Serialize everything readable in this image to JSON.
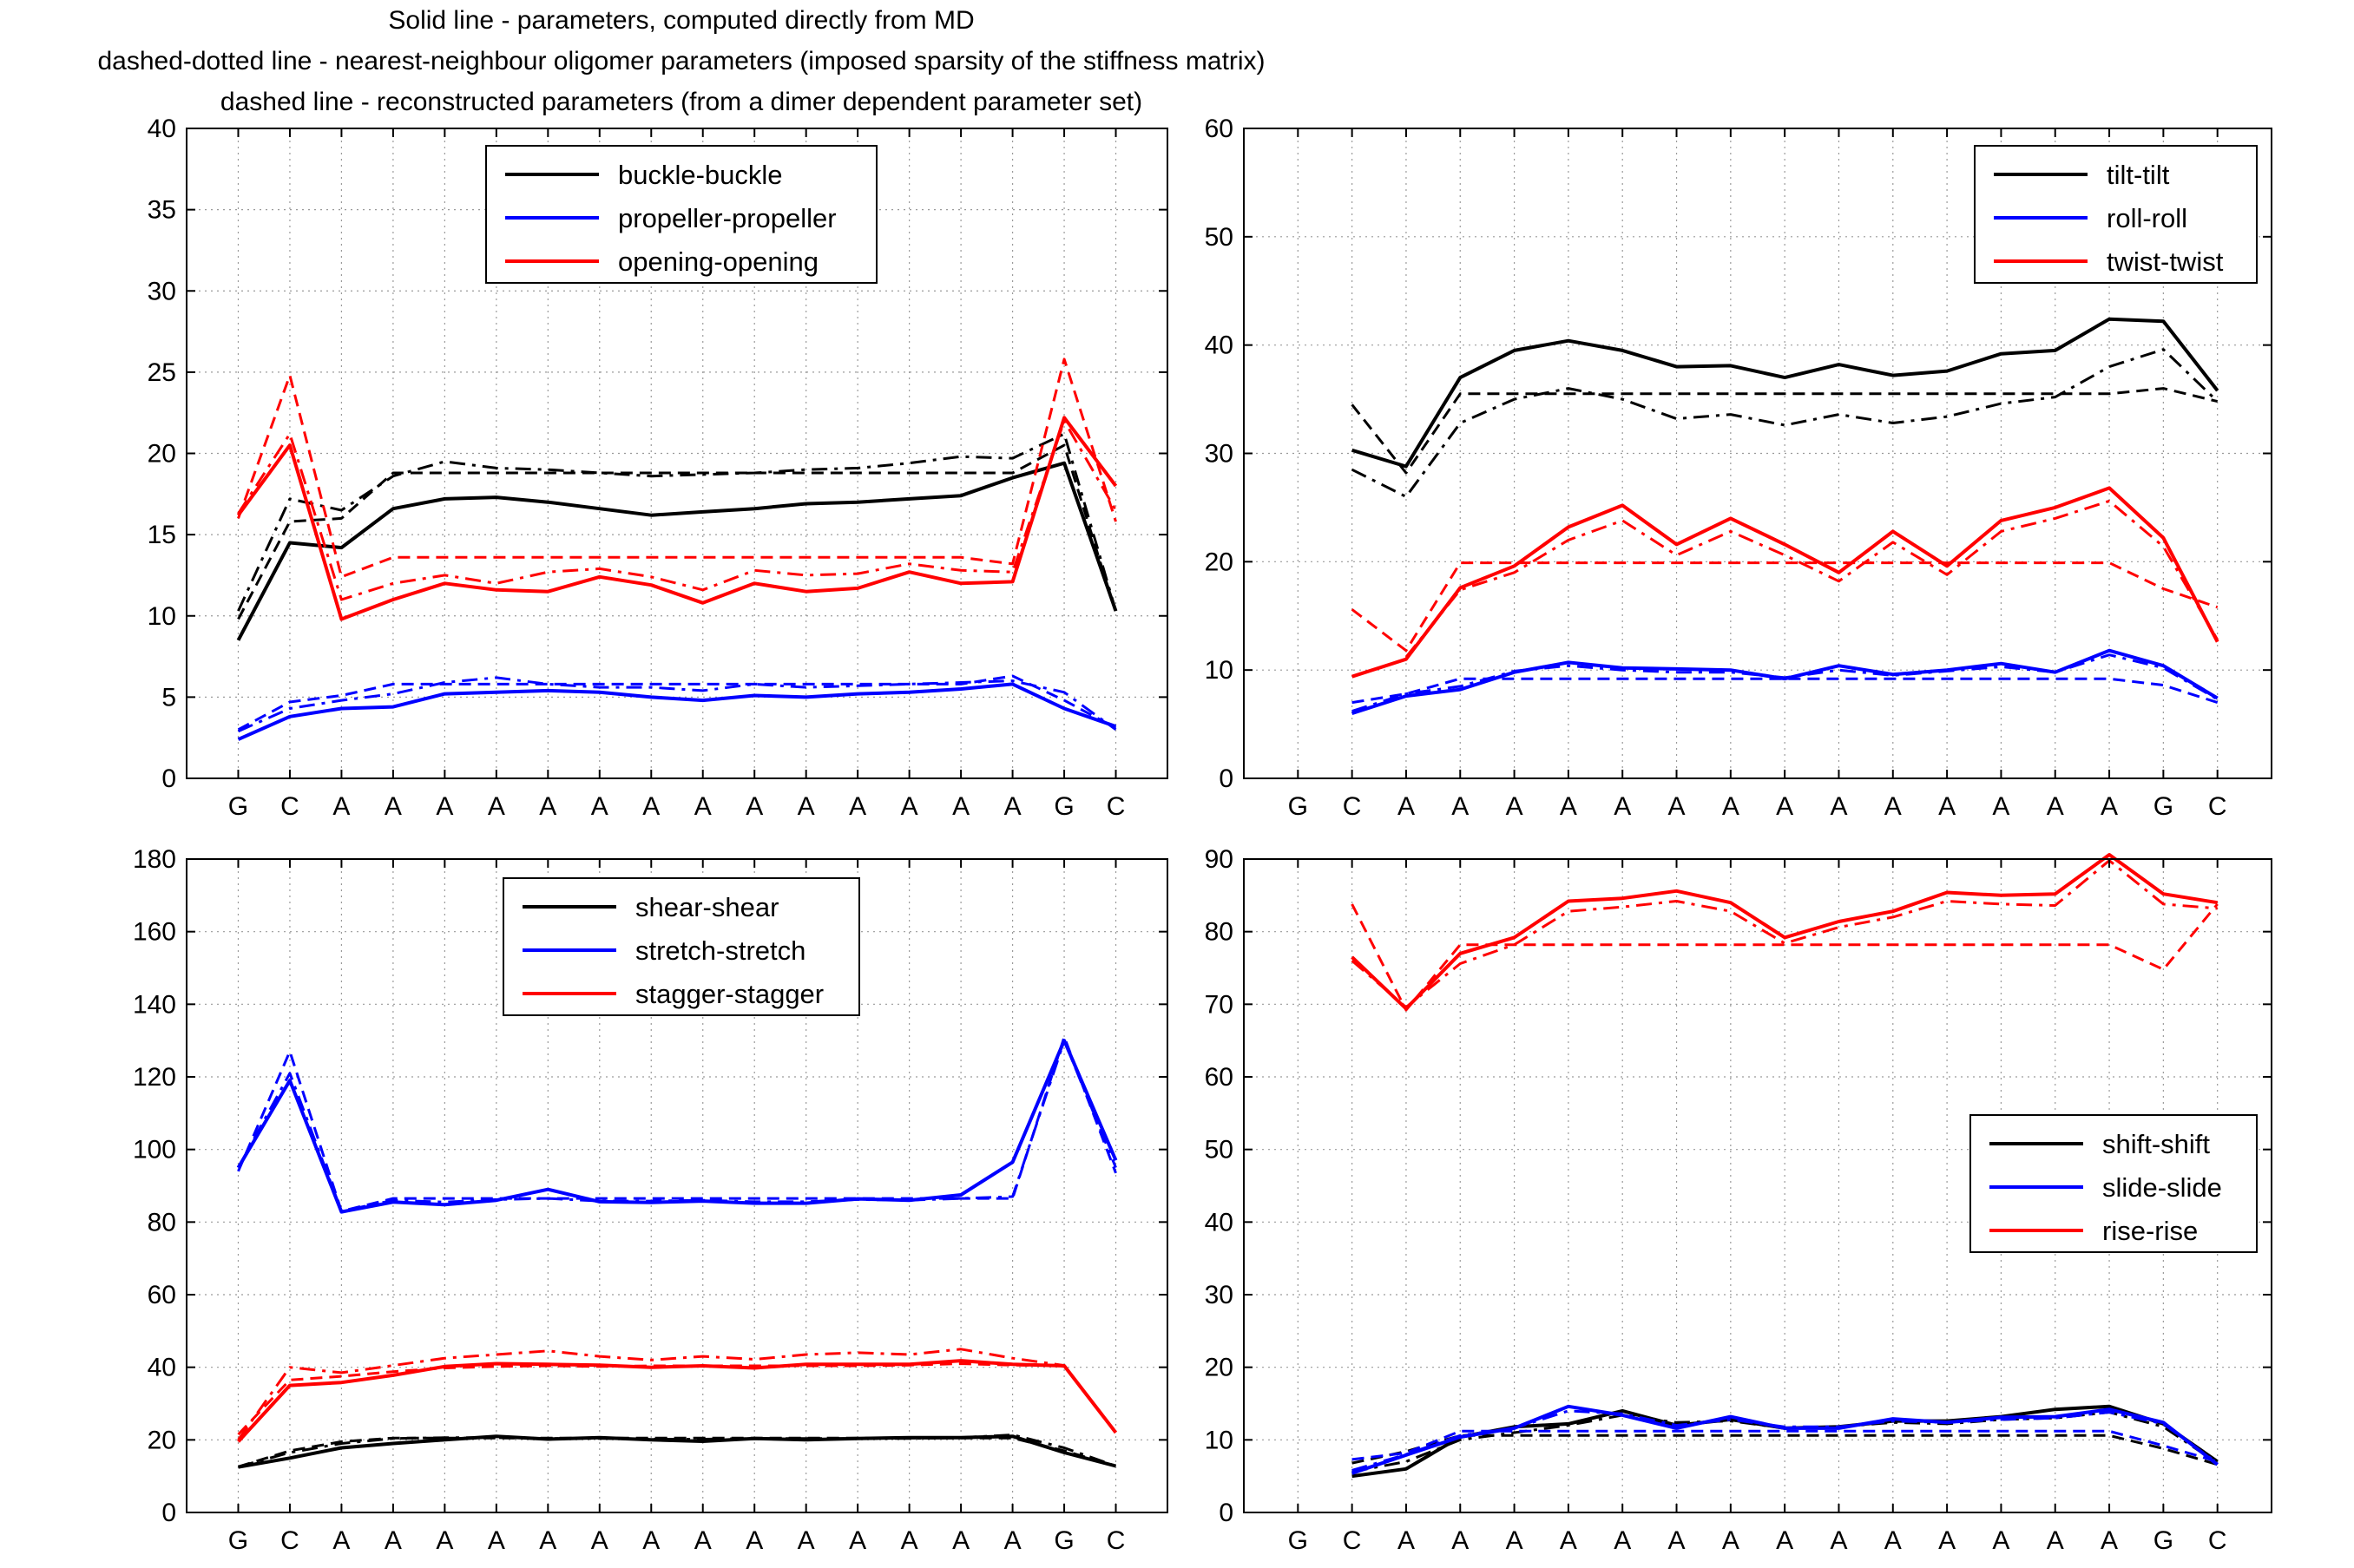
{
  "header": {
    "line1": "Solid line - parameters, computed directly from MD",
    "line2": "dashed-dotted line - nearest-neighbour oligomer parameters (imposed sparsity of the stiffness matrix)",
    "line3": "dashed line - reconstructed parameters (from a dimer dependent parameter set)"
  },
  "colors": {
    "black": "#000000",
    "blue": "#0000ff",
    "red": "#ff0000",
    "grid": "#9a9a9a"
  },
  "chart_data": [
    {
      "type": "line",
      "categories": [
        "G",
        "C",
        "A",
        "A",
        "A",
        "A",
        "A",
        "A",
        "A",
        "A",
        "A",
        "A",
        "A",
        "A",
        "A",
        "A",
        "G",
        "C"
      ],
      "ylim": [
        0,
        40
      ],
      "yticks": [
        0,
        5,
        10,
        15,
        20,
        25,
        30,
        35,
        40
      ],
      "legend_position": "top-center",
      "grid": true,
      "series": [
        {
          "name": "buckle-buckle",
          "color": "black",
          "style": "solid",
          "values": [
            8.5,
            14.5,
            14.2,
            16.6,
            17.2,
            17.3,
            17.0,
            16.6,
            16.2,
            16.4,
            16.6,
            16.9,
            17.0,
            17.2,
            17.4,
            18.5,
            19.4,
            10.3
          ]
        },
        {
          "name": "",
          "color": "black",
          "style": "dashdot",
          "values": [
            10.3,
            17.2,
            16.5,
            18.6,
            19.5,
            19.1,
            19.0,
            18.8,
            18.6,
            18.7,
            18.8,
            19.0,
            19.1,
            19.4,
            19.8,
            19.7,
            21.2,
            10.3
          ]
        },
        {
          "name": "",
          "color": "black",
          "style": "dashed",
          "values": [
            9.8,
            15.8,
            16.0,
            18.8,
            18.8,
            18.8,
            18.8,
            18.8,
            18.8,
            18.8,
            18.8,
            18.8,
            18.8,
            18.8,
            18.8,
            18.8,
            20.5,
            10.2
          ]
        },
        {
          "name": "propeller-propeller",
          "color": "blue",
          "style": "solid",
          "values": [
            2.4,
            3.8,
            4.3,
            4.4,
            5.2,
            5.3,
            5.4,
            5.3,
            5.0,
            4.8,
            5.1,
            5.0,
            5.2,
            5.3,
            5.5,
            5.8,
            4.3,
            3.2
          ]
        },
        {
          "name": "",
          "color": "blue",
          "style": "dashdot",
          "values": [
            2.9,
            4.3,
            4.8,
            5.2,
            5.9,
            6.2,
            5.8,
            5.6,
            5.6,
            5.4,
            5.8,
            5.6,
            5.7,
            5.8,
            5.9,
            6.0,
            5.3,
            3.0
          ]
        },
        {
          "name": "",
          "color": "blue",
          "style": "dashed",
          "values": [
            3.0,
            4.7,
            5.1,
            5.8,
            5.8,
            5.8,
            5.8,
            5.8,
            5.8,
            5.8,
            5.8,
            5.8,
            5.8,
            5.8,
            5.8,
            6.3,
            4.8,
            3.1
          ]
        },
        {
          "name": "opening-opening",
          "color": "red",
          "style": "solid",
          "values": [
            16.2,
            20.5,
            9.8,
            11.0,
            12.0,
            11.6,
            11.5,
            12.4,
            11.9,
            10.8,
            12.0,
            11.5,
            11.7,
            12.7,
            12.0,
            12.1,
            22.2,
            18.0
          ]
        },
        {
          "name": "",
          "color": "red",
          "style": "dashdot",
          "values": [
            16.3,
            21.2,
            11.0,
            12.0,
            12.5,
            12.0,
            12.7,
            12.9,
            12.4,
            11.6,
            12.8,
            12.5,
            12.6,
            13.2,
            12.8,
            12.7,
            22.0,
            16.5
          ]
        },
        {
          "name": "",
          "color": "red",
          "style": "dashed",
          "values": [
            16.0,
            24.8,
            12.4,
            13.6,
            13.6,
            13.6,
            13.6,
            13.6,
            13.6,
            13.6,
            13.6,
            13.6,
            13.6,
            13.6,
            13.6,
            13.2,
            25.8,
            15.8
          ]
        }
      ]
    },
    {
      "type": "line",
      "categories": [
        "G",
        "C",
        "A",
        "A",
        "A",
        "A",
        "A",
        "A",
        "A",
        "A",
        "A",
        "A",
        "A",
        "A",
        "A",
        "A",
        "G",
        "C"
      ],
      "ylim": [
        0,
        60
      ],
      "yticks": [
        0,
        10,
        20,
        30,
        40,
        50,
        60
      ],
      "legend_position": "top-right",
      "grid": true,
      "series": [
        {
          "name": "tilt-tilt",
          "color": "black",
          "style": "solid",
          "values": [
            null,
            30.3,
            28.8,
            37.0,
            39.5,
            40.4,
            39.5,
            38.0,
            38.1,
            37.0,
            38.2,
            37.2,
            37.6,
            39.2,
            39.5,
            42.4,
            42.2,
            35.8
          ]
        },
        {
          "name": "",
          "color": "black",
          "style": "dashdot",
          "values": [
            null,
            28.5,
            26.0,
            32.8,
            35.0,
            36.0,
            35.0,
            33.2,
            33.6,
            32.6,
            33.6,
            32.8,
            33.4,
            34.6,
            35.2,
            38.0,
            39.6,
            34.8
          ]
        },
        {
          "name": "",
          "color": "black",
          "style": "dashed",
          "values": [
            null,
            34.5,
            28.2,
            35.5,
            35.5,
            35.5,
            35.5,
            35.5,
            35.5,
            35.5,
            35.5,
            35.5,
            35.5,
            35.5,
            35.5,
            35.5,
            36.0,
            34.8
          ]
        },
        {
          "name": "roll-roll",
          "color": "blue",
          "style": "solid",
          "values": [
            null,
            6.0,
            7.6,
            8.2,
            9.8,
            10.7,
            10.2,
            10.1,
            10.0,
            9.2,
            10.4,
            9.6,
            10.0,
            10.6,
            9.8,
            11.8,
            10.4,
            7.4
          ]
        },
        {
          "name": "",
          "color": "blue",
          "style": "dashdot",
          "values": [
            null,
            6.2,
            7.8,
            8.5,
            9.9,
            10.4,
            10.0,
            9.8,
            9.8,
            9.3,
            10.0,
            9.5,
            9.9,
            10.3,
            9.8,
            11.4,
            10.2,
            7.3
          ]
        },
        {
          "name": "",
          "color": "blue",
          "style": "dashed",
          "values": [
            null,
            7.0,
            7.8,
            9.2,
            9.2,
            9.2,
            9.2,
            9.2,
            9.2,
            9.2,
            9.2,
            9.2,
            9.2,
            9.2,
            9.2,
            9.2,
            8.6,
            7.0
          ]
        },
        {
          "name": "twist-twist",
          "color": "red",
          "style": "solid",
          "values": [
            null,
            9.4,
            11.0,
            17.6,
            19.6,
            23.2,
            25.2,
            21.6,
            24.0,
            21.6,
            19.0,
            22.8,
            19.6,
            23.8,
            25.0,
            26.8,
            22.2,
            12.6
          ]
        },
        {
          "name": "",
          "color": "red",
          "style": "dashdot",
          "values": [
            null,
            null,
            11.2,
            17.4,
            19.0,
            22.0,
            23.8,
            20.6,
            22.8,
            20.6,
            18.2,
            21.8,
            18.8,
            22.8,
            24.0,
            25.6,
            21.4,
            12.8
          ]
        },
        {
          "name": "",
          "color": "red",
          "style": "dashed",
          "values": [
            null,
            15.6,
            11.8,
            19.9,
            19.9,
            19.9,
            19.9,
            19.9,
            19.9,
            19.9,
            19.9,
            19.9,
            19.9,
            19.9,
            19.9,
            19.9,
            17.5,
            15.8
          ]
        }
      ]
    },
    {
      "type": "line",
      "categories": [
        "G",
        "C",
        "A",
        "A",
        "A",
        "A",
        "A",
        "A",
        "A",
        "A",
        "A",
        "A",
        "A",
        "A",
        "A",
        "A",
        "G",
        "C"
      ],
      "ylim": [
        0,
        180
      ],
      "yticks": [
        0,
        20,
        40,
        60,
        80,
        100,
        120,
        140,
        160,
        180
      ],
      "legend_position": "top-center",
      "grid": true,
      "series": [
        {
          "name": "shear-shear",
          "color": "black",
          "style": "solid",
          "values": [
            12.5,
            15.0,
            17.8,
            19.0,
            20.0,
            21.0,
            20.2,
            20.6,
            20.0,
            19.6,
            20.4,
            20.0,
            20.4,
            20.6,
            20.6,
            21.0,
            16.5,
            12.8
          ]
        },
        {
          "name": "",
          "color": "black",
          "style": "dashdot",
          "values": [
            12.6,
            16.5,
            19.0,
            20.4,
            20.6,
            20.6,
            20.4,
            20.4,
            20.2,
            20.2,
            20.4,
            20.4,
            20.4,
            20.4,
            20.6,
            21.4,
            17.8,
            12.8
          ]
        },
        {
          "name": "",
          "color": "black",
          "style": "dashed",
          "values": [
            12.6,
            17.0,
            19.5,
            20.5,
            20.5,
            20.5,
            20.5,
            20.5,
            20.5,
            20.5,
            20.5,
            20.5,
            20.5,
            20.5,
            20.5,
            20.5,
            17.0,
            12.8
          ]
        },
        {
          "name": "stretch-stretch",
          "color": "blue",
          "style": "solid",
          "values": [
            95,
            119,
            82.8,
            85.5,
            84.8,
            86.0,
            89.0,
            85.6,
            85.4,
            85.8,
            85.2,
            85.2,
            86.4,
            86.0,
            87.5,
            96.5,
            130,
            97
          ]
        },
        {
          "name": "",
          "color": "blue",
          "style": "dashdot",
          "values": [
            95,
            121,
            83.0,
            86.0,
            85.5,
            86.2,
            86.5,
            85.8,
            85.8,
            86.0,
            85.6,
            85.6,
            86.2,
            86.0,
            86.5,
            87.0,
            130,
            95
          ]
        },
        {
          "name": "",
          "color": "blue",
          "style": "dashed",
          "values": [
            94,
            127,
            83.0,
            86.5,
            86.5,
            86.5,
            86.5,
            86.5,
            86.5,
            86.5,
            86.5,
            86.5,
            86.5,
            86.5,
            86.5,
            86.5,
            131,
            93.5
          ]
        },
        {
          "name": "stagger-stagger",
          "color": "red",
          "style": "solid",
          "values": [
            19.5,
            35.0,
            35.8,
            37.8,
            40.2,
            41.0,
            40.8,
            40.6,
            40.0,
            40.4,
            39.8,
            40.8,
            40.8,
            40.8,
            41.8,
            40.8,
            40.4,
            22.0
          ]
        },
        {
          "name": "",
          "color": "red",
          "style": "dashdot",
          "values": [
            20.0,
            40.0,
            38.5,
            40.5,
            42.5,
            43.5,
            44.5,
            43.0,
            42.0,
            43.0,
            42.2,
            43.5,
            44.0,
            43.5,
            45.0,
            42.5,
            40.5,
            22.0
          ]
        },
        {
          "name": "",
          "color": "red",
          "style": "dashed",
          "values": [
            21.5,
            36.5,
            37.5,
            38.8,
            39.8,
            40.2,
            40.4,
            40.2,
            40.4,
            40.4,
            40.4,
            40.4,
            40.4,
            40.6,
            41.0,
            40.6,
            40.5,
            22.0
          ]
        }
      ]
    },
    {
      "type": "line",
      "categories": [
        "G",
        "C",
        "A",
        "A",
        "A",
        "A",
        "A",
        "A",
        "A",
        "A",
        "A",
        "A",
        "A",
        "A",
        "A",
        "A",
        "G",
        "C"
      ],
      "ylim": [
        0,
        90
      ],
      "yticks": [
        0,
        10,
        20,
        30,
        40,
        50,
        60,
        70,
        80,
        90
      ],
      "legend_position": "middle-right",
      "grid": true,
      "series": [
        {
          "name": "shift-shift",
          "color": "black",
          "style": "solid",
          "values": [
            null,
            5.0,
            6.0,
            10.4,
            11.8,
            12.2,
            14.0,
            12.0,
            12.8,
            11.6,
            11.8,
            12.6,
            12.6,
            13.2,
            14.2,
            14.6,
            12.2,
            7.0
          ]
        },
        {
          "name": "",
          "color": "black",
          "style": "dashdot",
          "values": [
            null,
            5.6,
            7.0,
            10.0,
            11.0,
            12.0,
            13.4,
            12.4,
            12.6,
            11.6,
            11.8,
            12.4,
            12.2,
            12.8,
            13.0,
            13.8,
            11.8,
            6.8
          ]
        },
        {
          "name": "",
          "color": "black",
          "style": "dashed",
          "values": [
            null,
            6.8,
            8.4,
            10.6,
            10.6,
            10.6,
            10.6,
            10.6,
            10.6,
            10.6,
            10.6,
            10.6,
            10.6,
            10.6,
            10.6,
            10.6,
            8.8,
            6.6
          ]
        },
        {
          "name": "slide-slide",
          "color": "blue",
          "style": "solid",
          "values": [
            null,
            5.4,
            7.9,
            10.4,
            11.6,
            14.6,
            13.4,
            11.6,
            13.2,
            11.6,
            11.6,
            12.9,
            12.4,
            13.1,
            13.2,
            14.2,
            12.4,
            6.6
          ]
        },
        {
          "name": "",
          "color": "blue",
          "style": "dashdot",
          "values": [
            null,
            5.8,
            8.0,
            10.6,
            11.6,
            14.0,
            13.6,
            12.0,
            12.8,
            11.8,
            11.8,
            12.6,
            12.4,
            12.8,
            13.0,
            13.8,
            12.2,
            6.8
          ]
        },
        {
          "name": "",
          "color": "blue",
          "style": "dashed",
          "values": [
            null,
            7.3,
            8.2,
            11.2,
            11.2,
            11.2,
            11.2,
            11.2,
            11.2,
            11.2,
            11.2,
            11.2,
            11.2,
            11.2,
            11.2,
            11.2,
            9.2,
            7.0
          ]
        },
        {
          "name": "rise-rise",
          "color": "red",
          "style": "solid",
          "values": [
            null,
            76.5,
            69.4,
            77.0,
            79.2,
            84.2,
            84.6,
            85.6,
            84.0,
            79.2,
            81.4,
            82.8,
            85.4,
            85.0,
            85.2,
            90.6,
            85.2,
            84.0
          ]
        },
        {
          "name": "",
          "color": "red",
          "style": "dashdot",
          "values": [
            null,
            76.0,
            69.6,
            75.6,
            78.2,
            82.8,
            83.4,
            84.2,
            82.8,
            78.4,
            80.6,
            82.0,
            84.2,
            83.8,
            83.6,
            89.8,
            83.8,
            83.2
          ]
        },
        {
          "name": "",
          "color": "red",
          "style": "dashed",
          "values": [
            null,
            83.8,
            69.2,
            78.2,
            78.2,
            78.2,
            78.2,
            78.2,
            78.2,
            78.2,
            78.2,
            78.2,
            78.2,
            78.2,
            78.2,
            78.2,
            74.8,
            83.8
          ]
        }
      ]
    }
  ]
}
